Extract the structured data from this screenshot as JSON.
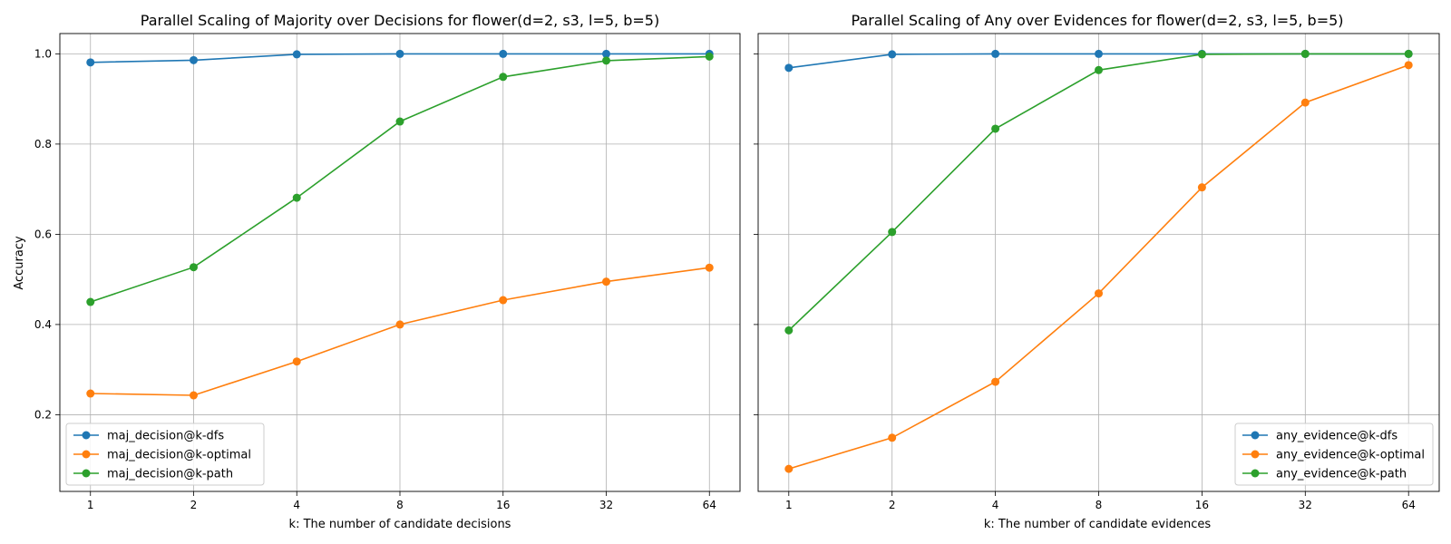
{
  "chart_data": [
    {
      "type": "line",
      "title": "Parallel Scaling of Majority over Decisions for flower(d=2, s3, l=5, b=5)",
      "xlabel": "k: The number of candidate decisions",
      "ylabel": "Accuracy",
      "x_scale": "log2",
      "categories": [
        "1",
        "2",
        "4",
        "8",
        "16",
        "32",
        "64"
      ],
      "x": [
        1,
        2,
        4,
        8,
        16,
        32,
        64
      ],
      "ylim": [
        0.03,
        1.045
      ],
      "yticks": [
        "0.2",
        "0.4",
        "0.6",
        "0.8",
        "1.0"
      ],
      "grid": true,
      "legend_position": "lower-left",
      "series": [
        {
          "name": "maj_decision@k-dfs",
          "color": "#1f77b4",
          "values": [
            0.981,
            0.986,
            0.999,
            1.0,
            1.0,
            1.0,
            1.0
          ]
        },
        {
          "name": "maj_decision@k-optimal",
          "color": "#ff7f0e",
          "values": [
            0.247,
            0.243,
            0.318,
            0.4,
            0.454,
            0.495,
            0.526
          ]
        },
        {
          "name": "maj_decision@k-path",
          "color": "#2ca02c",
          "values": [
            0.45,
            0.527,
            0.681,
            0.85,
            0.949,
            0.985,
            0.994
          ]
        }
      ]
    },
    {
      "type": "line",
      "title": "Parallel Scaling of Any over Evidences for flower(d=2, s3, l=5, b=5)",
      "xlabel": "k: The number of candidate evidences",
      "ylabel": "",
      "x_scale": "log2",
      "categories": [
        "1",
        "2",
        "4",
        "8",
        "16",
        "32",
        "64"
      ],
      "x": [
        1,
        2,
        4,
        8,
        16,
        32,
        64
      ],
      "ylim": [
        0.03,
        1.045
      ],
      "yticks": [],
      "grid": true,
      "legend_position": "lower-right",
      "series": [
        {
          "name": "any_evidence@k-dfs",
          "color": "#1f77b4",
          "values": [
            0.969,
            0.999,
            1.0,
            1.0,
            1.0,
            1.0,
            1.0
          ]
        },
        {
          "name": "any_evidence@k-optimal",
          "color": "#ff7f0e",
          "values": [
            0.08,
            0.149,
            0.273,
            0.469,
            0.704,
            0.892,
            0.975
          ]
        },
        {
          "name": "any_evidence@k-path",
          "color": "#2ca02c",
          "values": [
            0.387,
            0.605,
            0.834,
            0.964,
            0.999,
            1.0,
            1.0
          ]
        }
      ]
    }
  ]
}
